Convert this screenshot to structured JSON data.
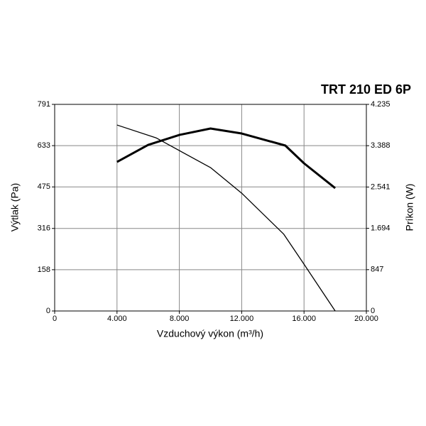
{
  "chart_data": {
    "type": "line",
    "title": "TRT 210 ED 6P",
    "x_label": "Vzduchový výkon (m³/h)",
    "y_label": "Výtlak (Pa)",
    "y2_label": "Príkon (W)",
    "xlim": [
      0,
      20000
    ],
    "xticks": [
      0,
      {
        "value": 4000,
        "label": "4.000"
      },
      {
        "value": 8000,
        "label": "8.000"
      },
      {
        "value": 12000,
        "label": "12.000"
      },
      {
        "value": 16000,
        "label": "16.000"
      },
      {
        "value": 20000,
        "label": "20.000"
      }
    ],
    "ylim": [
      0,
      791
    ],
    "yticks": [
      0,
      158,
      316,
      475,
      633,
      791
    ],
    "y2lim": [
      0,
      4235
    ],
    "y2ticks": [
      0,
      847,
      {
        "value": 1694,
        "label": "1.694"
      },
      {
        "value": 2541,
        "label": "2.541"
      },
      {
        "value": 3388,
        "label": "3.388"
      },
      {
        "value": 4235,
        "label": "4.235"
      }
    ],
    "grid": true,
    "series": [
      {
        "color": "#000000",
        "width": 1.3,
        "x": [
          4000,
          6500,
          10000,
          12000,
          14700,
          16000,
          18000
        ],
        "values": [
          712,
          663,
          549,
          451,
          294,
          179,
          0
        ]
      },
      {
        "color": "#000000",
        "width": 3,
        "axis": "y2",
        "x": [
          4000,
          6000,
          8000,
          10000,
          12000,
          14800,
          16000,
          18000
        ],
        "values": [
          3056,
          3405,
          3609,
          3740,
          3638,
          3391,
          3027,
          2518
        ]
      }
    ]
  }
}
